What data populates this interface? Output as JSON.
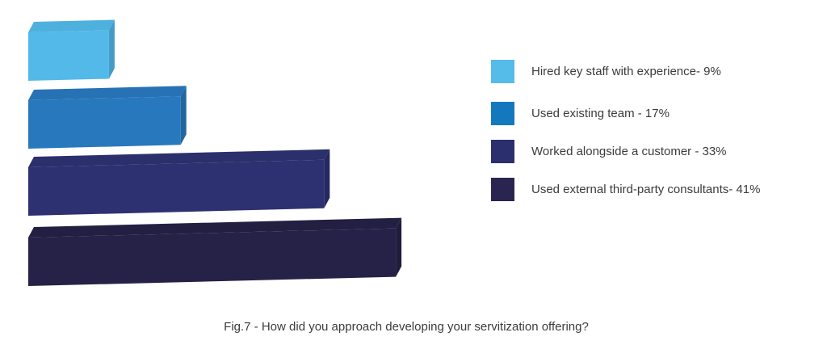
{
  "caption": "Fig.7 - How did you approach developing your servitization offering?",
  "chart_data": {
    "type": "bar",
    "orientation": "horizontal",
    "title": "Fig.7 - How did you approach developing your servitization offering?",
    "categories": [
      "Hired key staff with experience",
      "Used existing team",
      "Worked alongside a customer",
      "Used external third-party consultants"
    ],
    "values": [
      9,
      17,
      33,
      41
    ],
    "unit": "%",
    "style": "3d-blocks",
    "axes_visible": false,
    "grid": false,
    "xlim": [
      0,
      45
    ],
    "legend_position": "right",
    "bar_colors": [
      "#52B9E9",
      "#2878BE",
      "#2D3171",
      "#252147"
    ],
    "legend": [
      {
        "label": "Hired key staff with experience- 9%",
        "color": "#55BBE9"
      },
      {
        "label": "Used existing team - 17%",
        "color": "#1478BE"
      },
      {
        "label": "Worked alongside a customer - 33%",
        "color": "#2B2F6E"
      },
      {
        "label": "Used external third-party consultants- 41%",
        "color": "#2A2450"
      }
    ]
  }
}
